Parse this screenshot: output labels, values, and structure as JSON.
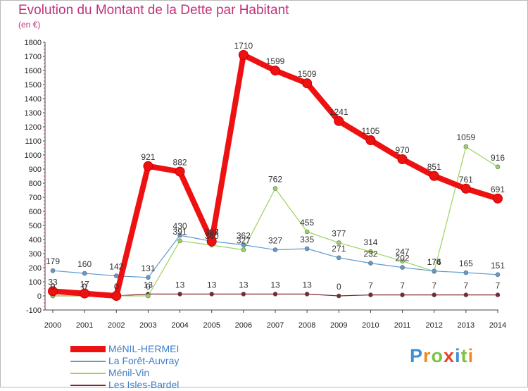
{
  "page": {
    "title": "Evolution du Montant de la Dette par Habitant",
    "subtitle": "(en €)",
    "logo": [
      "P",
      "r",
      "o",
      "x",
      "i",
      "t",
      "i"
    ],
    "logo_colors": [
      "#3d8fd6",
      "#f08a1c",
      "#7cc242",
      "#e8432e",
      "#3d8fd6",
      "#7cc242",
      "#f08a1c"
    ]
  },
  "chart_data": {
    "type": "line",
    "title": "Evolution du Montant de la Dette par Habitant",
    "subtitle": "(en €)",
    "xlabel": "",
    "ylabel": "",
    "x": [
      2000,
      2001,
      2002,
      2003,
      2004,
      2005,
      2006,
      2007,
      2008,
      2009,
      2010,
      2011,
      2012,
      2013,
      2014
    ],
    "ylim": [
      -100,
      1800
    ],
    "yticks": [
      -100,
      0,
      100,
      200,
      300,
      400,
      500,
      600,
      700,
      800,
      900,
      1000,
      1100,
      1200,
      1300,
      1400,
      1500,
      1600,
      1700,
      1800
    ],
    "grid": false,
    "legend_position": "bottom-left",
    "series": [
      {
        "name": "MéNIL-HERMEI",
        "color": "#ee1111",
        "values": [
          33,
          17,
          0,
          921,
          882,
          387,
          1710,
          1599,
          1509,
          1241,
          1105,
          970,
          851,
          761,
          691
        ]
      },
      {
        "name": "La Forêt-Auvray",
        "color": "#5d9bd2",
        "values": [
          179,
          160,
          142,
          131,
          430,
          388,
          362,
          327,
          335,
          271,
          232,
          202,
          176,
          165,
          151
        ]
      },
      {
        "name": "Ménil-Vin",
        "color": "#9ad45c",
        "values": [
          0,
          0,
          0,
          0,
          391,
          360,
          327,
          762,
          455,
          377,
          314,
          247,
          174,
          1059,
          916
        ]
      },
      {
        "name": "Les Isles-Bardel",
        "color": "#7a2830",
        "values": [
          0,
          0,
          0,
          13,
          13,
          13,
          13,
          13,
          13,
          0,
          7,
          7,
          7,
          7,
          7
        ]
      }
    ]
  }
}
